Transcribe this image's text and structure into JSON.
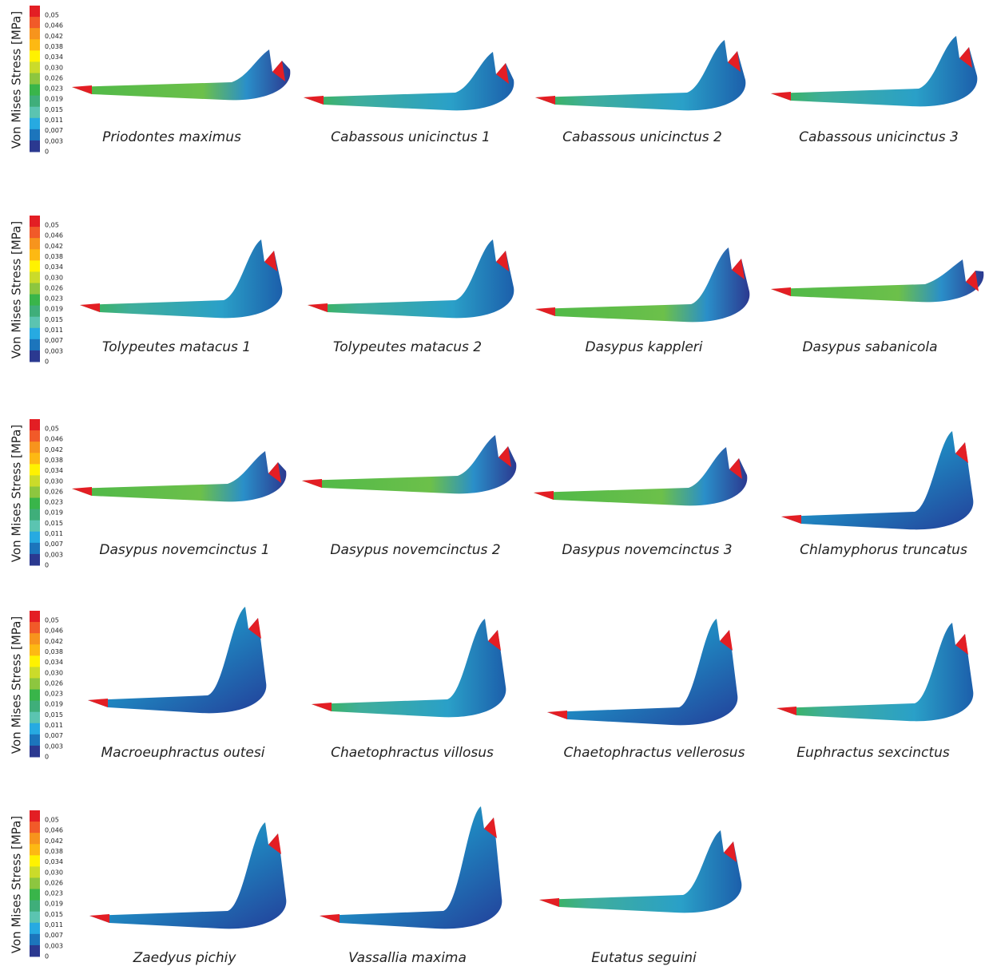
{
  "legend": {
    "title": "Von Mises Stress [MPa]",
    "labels": [
      "0,05",
      "0,046",
      "0,042",
      "0,038",
      "0,034",
      "0,030",
      "0,026",
      "0,023",
      "0,019",
      "0,015",
      "0,011",
      "0,007",
      "0,003",
      "0"
    ],
    "colors": [
      "#e31e24",
      "#f15a29",
      "#f7941d",
      "#fdb913",
      "#fff200",
      "#cbdb2a",
      "#8dc63f",
      "#39b54a",
      "#3fae7a",
      "#5bc4b1",
      "#27aae1",
      "#1c75bc",
      "#2b3990"
    ]
  },
  "panels": [
    {
      "name": "Priodontes maximus"
    },
    {
      "name": "Cabassous unicinctus 1"
    },
    {
      "name": "Cabassous unicinctus 2"
    },
    {
      "name": "Cabassous unicinctus 3"
    },
    {
      "name": "Tolypeutes matacus 1"
    },
    {
      "name": "Tolypeutes matacus 2"
    },
    {
      "name": "Dasypus kappleri"
    },
    {
      "name": "Dasypus sabanicola"
    },
    {
      "name": "Dasypus novemcinctus 1"
    },
    {
      "name": "Dasypus novemcinctus 2"
    },
    {
      "name": "Dasypus novemcinctus 3"
    },
    {
      "name": "Chlamyphorus truncatus"
    },
    {
      "name": "Macroeuphractus outesi"
    },
    {
      "name": "Chaetophractus villosus"
    },
    {
      "name": "Chaetophractus vellerosus"
    },
    {
      "name": "Euphractus sexcinctus"
    },
    {
      "name": "Zaedyus pichiy"
    },
    {
      "name": "Vassallia maxima"
    },
    {
      "name": "Eutatus seguini"
    }
  ]
}
